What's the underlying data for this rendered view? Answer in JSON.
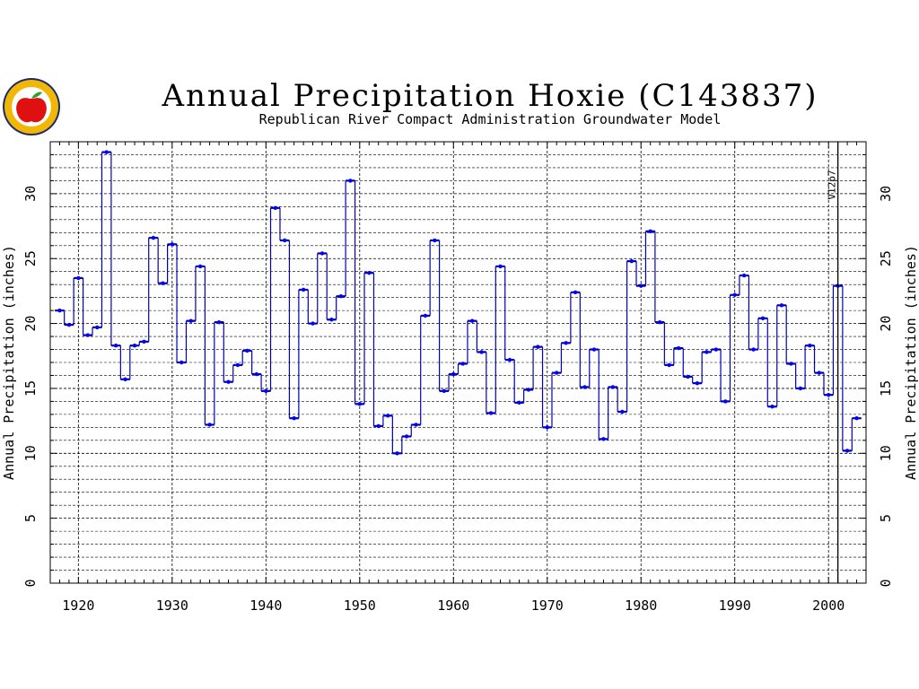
{
  "chart_data": {
    "type": "line",
    "style": "step",
    "title": "Annual Precipitation Hoxie (C143837)",
    "subtitle": "Republican River Compact Administration Groundwater Model",
    "xlabel": "",
    "ylabel": "Annual Precipitation (inches)",
    "xlim": [
      1917,
      2004
    ],
    "ylim": [
      0,
      34
    ],
    "x_ticks": [
      1920,
      1930,
      1940,
      1950,
      1960,
      1970,
      1980,
      1990,
      2000
    ],
    "y_ticks": [
      0,
      5,
      10,
      15,
      20,
      25,
      30
    ],
    "y_minor_step": 1,
    "grid": true,
    "marker_line": {
      "x": 2001,
      "label": "V12p7"
    },
    "colors": {
      "series": "#0000b4",
      "marker": "#0000ff",
      "grid": "#000000"
    },
    "x": [
      1918,
      1919,
      1920,
      1921,
      1922,
      1923,
      1924,
      1925,
      1926,
      1927,
      1928,
      1929,
      1930,
      1931,
      1932,
      1933,
      1934,
      1935,
      1936,
      1937,
      1938,
      1939,
      1940,
      1941,
      1942,
      1943,
      1944,
      1945,
      1946,
      1947,
      1948,
      1949,
      1950,
      1951,
      1952,
      1953,
      1954,
      1955,
      1956,
      1957,
      1958,
      1959,
      1960,
      1961,
      1962,
      1963,
      1964,
      1965,
      1966,
      1967,
      1968,
      1969,
      1970,
      1971,
      1972,
      1973,
      1974,
      1975,
      1976,
      1977,
      1978,
      1979,
      1980,
      1981,
      1982,
      1983,
      1984,
      1985,
      1986,
      1987,
      1988,
      1989,
      1990,
      1991,
      1992,
      1993,
      1994,
      1995,
      1996,
      1997,
      1998,
      1999,
      2000,
      2001,
      2002,
      2003
    ],
    "series": [
      {
        "values": [
          21.0,
          19.9,
          23.5,
          19.1,
          19.7,
          33.2,
          18.3,
          15.7,
          18.3,
          18.6,
          26.6,
          23.1,
          26.1,
          17.0,
          20.2,
          24.4,
          12.2,
          20.1,
          15.5,
          16.8,
          17.9,
          16.1,
          14.8,
          28.9,
          26.4,
          12.7,
          22.6,
          20.0,
          25.4,
          20.3,
          22.1,
          31.0,
          13.8,
          23.9,
          12.1,
          12.9,
          10.0,
          11.3,
          12.2,
          20.6,
          26.4,
          14.8,
          16.1,
          16.9,
          20.2,
          17.8,
          13.1,
          24.4,
          17.2,
          13.9,
          14.9,
          18.2,
          12.0,
          16.2,
          18.5,
          22.4,
          15.1,
          18.0,
          11.1,
          15.1,
          13.2,
          24.8,
          22.9,
          27.1,
          20.1,
          16.8,
          18.1,
          15.9,
          15.4,
          17.8,
          18.0,
          14.0,
          22.2,
          23.7,
          18.0,
          20.4,
          13.6,
          21.4,
          16.9,
          15.0,
          18.3,
          16.2,
          14.5,
          22.9,
          10.2,
          12.7
        ]
      }
    ]
  },
  "logo": {
    "name": "apple-seal-logo"
  }
}
